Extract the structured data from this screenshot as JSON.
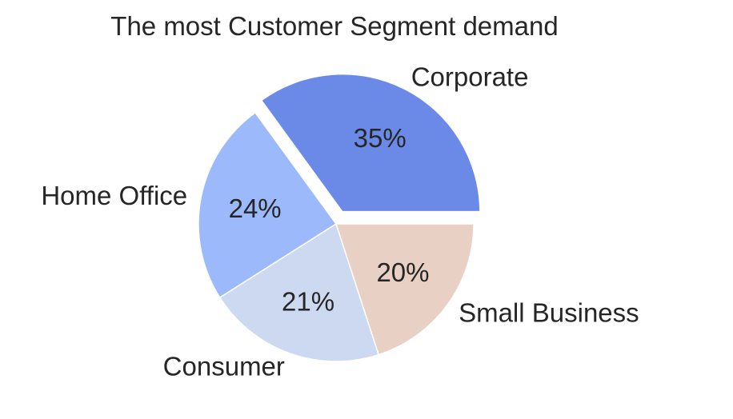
{
  "chart_data": {
    "type": "pie",
    "title": "The most Customer Segment demand",
    "slices": [
      {
        "label": "Corporate",
        "value": 35,
        "pct_label": "35%",
        "color": "#6b8ae8",
        "exploded": true
      },
      {
        "label": "Home Office",
        "value": 24,
        "pct_label": "24%",
        "color": "#9bb9fb",
        "exploded": false
      },
      {
        "label": "Consumer",
        "value": 21,
        "pct_label": "21%",
        "color": "#cdd9f0",
        "exploded": false
      },
      {
        "label": "Small Business",
        "value": 20,
        "pct_label": "20%",
        "color": "#e8d0c4",
        "exploded": false
      }
    ],
    "start_angle_deg": 0,
    "direction": "counterclockwise",
    "legend": "none"
  }
}
